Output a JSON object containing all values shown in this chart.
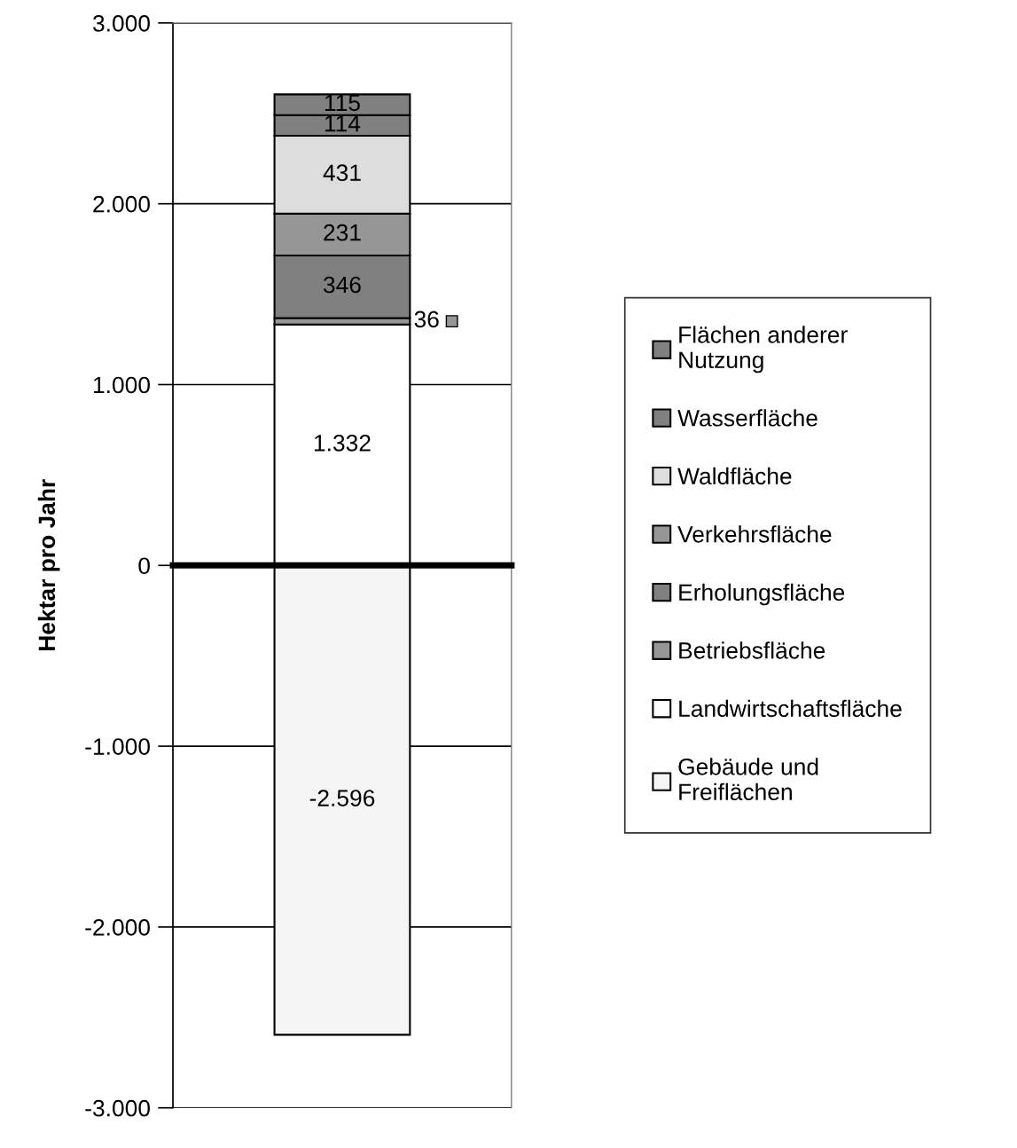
{
  "chart_data": {
    "type": "bar",
    "stacked": true,
    "ylabel": "Hektar pro Jahr",
    "categories": [
      null
    ],
    "series": [
      {
        "name": "Gebäude und\nFreiflächen",
        "color": "#f5f5f5",
        "values": [
          -2596
        ],
        "value_labels": [
          "-2.596"
        ]
      },
      {
        "name": "Landwirtschaftsfläche",
        "color": "#ffffff",
        "values": [
          1332
        ],
        "value_labels": [
          "1.332"
        ]
      },
      {
        "name": "Betriebsfläche",
        "color": "#969696",
        "values": [
          36
        ],
        "value_labels": [
          "36"
        ]
      },
      {
        "name": "Erholungsfläche",
        "color": "#808080",
        "values": [
          346
        ],
        "value_labels": [
          "346"
        ]
      },
      {
        "name": "Verkehrsfläche",
        "color": "#969696",
        "values": [
          231
        ],
        "value_labels": [
          "231"
        ]
      },
      {
        "name": "Waldfläche",
        "color": "#dddddd",
        "values": [
          431
        ],
        "value_labels": [
          "431"
        ]
      },
      {
        "name": "Wasserfläche",
        "color": "#808080",
        "values": [
          114
        ],
        "value_labels": [
          "114"
        ]
      },
      {
        "name": "Flächen anderer\nNutzung",
        "color": "#808080",
        "values": [
          115
        ],
        "value_labels": [
          "115"
        ]
      }
    ],
    "ylim": [
      -3000,
      3000
    ],
    "yticks": [
      {
        "value": -3000,
        "label": "-3.000"
      },
      {
        "value": -2000,
        "label": "-2.000"
      },
      {
        "value": -1000,
        "label": "-1.000"
      },
      0,
      {
        "value": 1000,
        "label": "1.000"
      },
      {
        "value": 2000,
        "label": "2.000"
      },
      {
        "value": 3000,
        "label": "3.000"
      }
    ],
    "grid": "y",
    "legend": "right"
  }
}
